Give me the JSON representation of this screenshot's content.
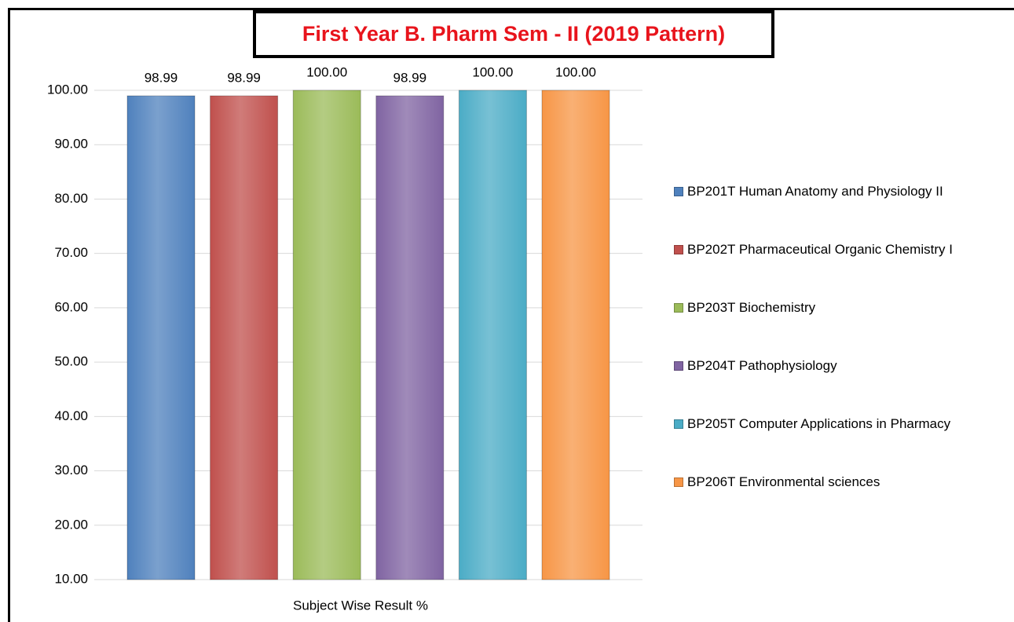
{
  "chart_data": {
    "type": "bar",
    "title": "First Year B. Pharm Sem - II (2019 Pattern)",
    "categories": [
      "Subject Wise Result %"
    ],
    "series": [
      {
        "name": "BP201T Human Anatomy and Physiology II",
        "color": "#4f81bd",
        "values": [
          98.99
        ],
        "value_labels": [
          "98.99"
        ]
      },
      {
        "name": "BP202T Pharmaceutical Organic Chemistry I",
        "color": "#c0504d",
        "values": [
          98.99
        ],
        "value_labels": [
          "98.99"
        ]
      },
      {
        "name": "BP203T Biochemistry",
        "color": "#9bbb59",
        "values": [
          100
        ],
        "value_labels": [
          "100.00"
        ]
      },
      {
        "name": "BP204T Pathophysiology",
        "color": "#8064a2",
        "values": [
          98.99
        ],
        "value_labels": [
          "98.99"
        ]
      },
      {
        "name": "BP205T Computer Applications in Pharmacy",
        "color": "#4bacc6",
        "values": [
          100
        ],
        "value_labels": [
          "100.00"
        ]
      },
      {
        "name": "BP206T Environmental sciences",
        "color": "#f79646",
        "values": [
          100
        ],
        "value_labels": [
          "100.00"
        ]
      }
    ],
    "ylim": [
      10,
      100
    ],
    "yticks": [
      {
        "value": 10,
        "label": "10.00"
      },
      {
        "value": 20,
        "label": "20.00"
      },
      {
        "value": 30,
        "label": "30.00"
      },
      {
        "value": 40,
        "label": "40.00"
      },
      {
        "value": 50,
        "label": "50.00"
      },
      {
        "value": 60,
        "label": "60.00"
      },
      {
        "value": 70,
        "label": "70.00"
      },
      {
        "value": 80,
        "label": "80.00"
      },
      {
        "value": 90,
        "label": "90.00"
      },
      {
        "value": 100,
        "label": "100.00"
      }
    ],
    "grid": true,
    "legend": "right"
  }
}
